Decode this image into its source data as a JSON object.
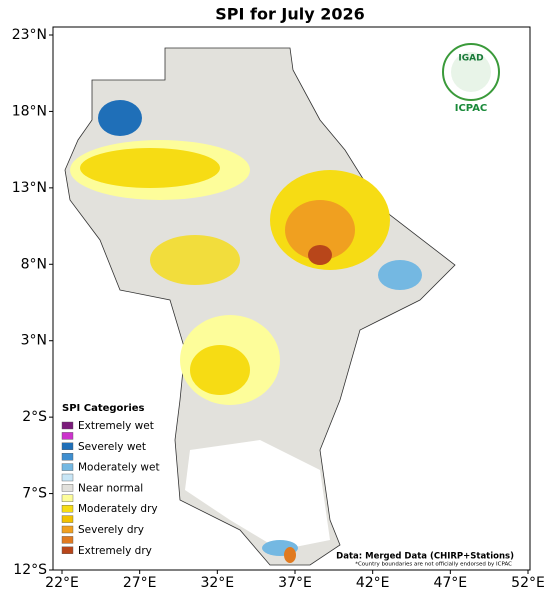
{
  "title": "SPI for July 2026",
  "lon_ticks": [
    {
      "value": 22,
      "label": "22°E"
    },
    {
      "value": 27,
      "label": "27°E"
    },
    {
      "value": 32,
      "label": "32°E"
    },
    {
      "value": 37,
      "label": "37°E"
    },
    {
      "value": 42,
      "label": "42°E"
    },
    {
      "value": 47,
      "label": "47°E"
    },
    {
      "value": 52,
      "label": "52°E"
    }
  ],
  "lat_ticks": [
    {
      "value": 23,
      "label": "23°N"
    },
    {
      "value": 18,
      "label": "18°N"
    },
    {
      "value": 13,
      "label": "13°N"
    },
    {
      "value": 8,
      "label": "8°N"
    },
    {
      "value": 3,
      "label": "3°N"
    },
    {
      "value": -2,
      "label": "2°S"
    },
    {
      "value": -7,
      "label": "7°S"
    },
    {
      "value": -12,
      "label": "12°S"
    }
  ],
  "legend": {
    "title": "SPI Categories",
    "items": [
      {
        "color": "#7a1b7a",
        "label": "Extremely wet"
      },
      {
        "color": "#cc33cc"
      },
      {
        "color": "#1f6fb8",
        "label": "Severely wet"
      },
      {
        "color": "#3f8fd0"
      },
      {
        "color": "#74b8e2",
        "label": "Moderately wet"
      },
      {
        "color": "#c8e6f6"
      },
      {
        "color": "#e2e1dc",
        "label": "Near normal"
      },
      {
        "color": "#fdfd9a"
      },
      {
        "color": "#f6dc14",
        "label": "Moderately dry"
      },
      {
        "color": "#f2c200"
      },
      {
        "color": "#f0a020",
        "label": "Severely dry"
      },
      {
        "color": "#e07a20"
      },
      {
        "color": "#b8461a",
        "label": "Extremely dry"
      }
    ]
  },
  "data_source": "Data: Merged Data (CHIRP+Stations)",
  "disclaimer": "*Country boundaries are not officially endorsed by ICPAC",
  "logo": {
    "top": "IGAD",
    "bottom": "ICPAC"
  }
}
